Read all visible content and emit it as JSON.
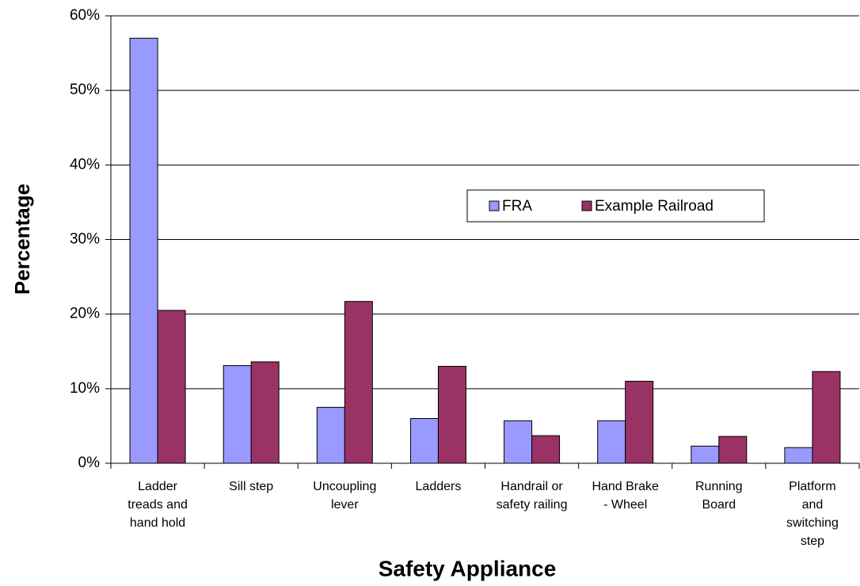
{
  "chart_data": {
    "type": "bar",
    "x_label": "Safety Appliance",
    "y_label": "Percentage",
    "categories": [
      "Ladder treads and hand hold",
      "Sill step",
      "Uncoupling lever",
      "Ladders",
      "Handrail or safety railing",
      "Hand Brake - Wheel",
      "Running Board",
      "Platform and switching step"
    ],
    "series": [
      {
        "name": "FRA",
        "color": "#9999ff",
        "values": [
          57,
          13.1,
          7.5,
          6.0,
          5.7,
          5.7,
          2.3,
          2.1
        ]
      },
      {
        "name": "Example Railroad",
        "color": "#993366",
        "values": [
          20.5,
          13.6,
          21.7,
          13.0,
          3.7,
          11.0,
          3.6,
          12.3
        ]
      }
    ],
    "ylim": [
      0,
      60
    ],
    "yticks": [
      {
        "value": 0,
        "label": "0%"
      },
      {
        "value": 10,
        "label": "10%"
      },
      {
        "value": 20,
        "label": "20%"
      },
      {
        "value": 30,
        "label": "30%"
      },
      {
        "value": 40,
        "label": "40%"
      },
      {
        "value": 50,
        "label": "50%"
      },
      {
        "value": 60,
        "label": "60%"
      }
    ],
    "grid": true,
    "legend": "center-right"
  }
}
